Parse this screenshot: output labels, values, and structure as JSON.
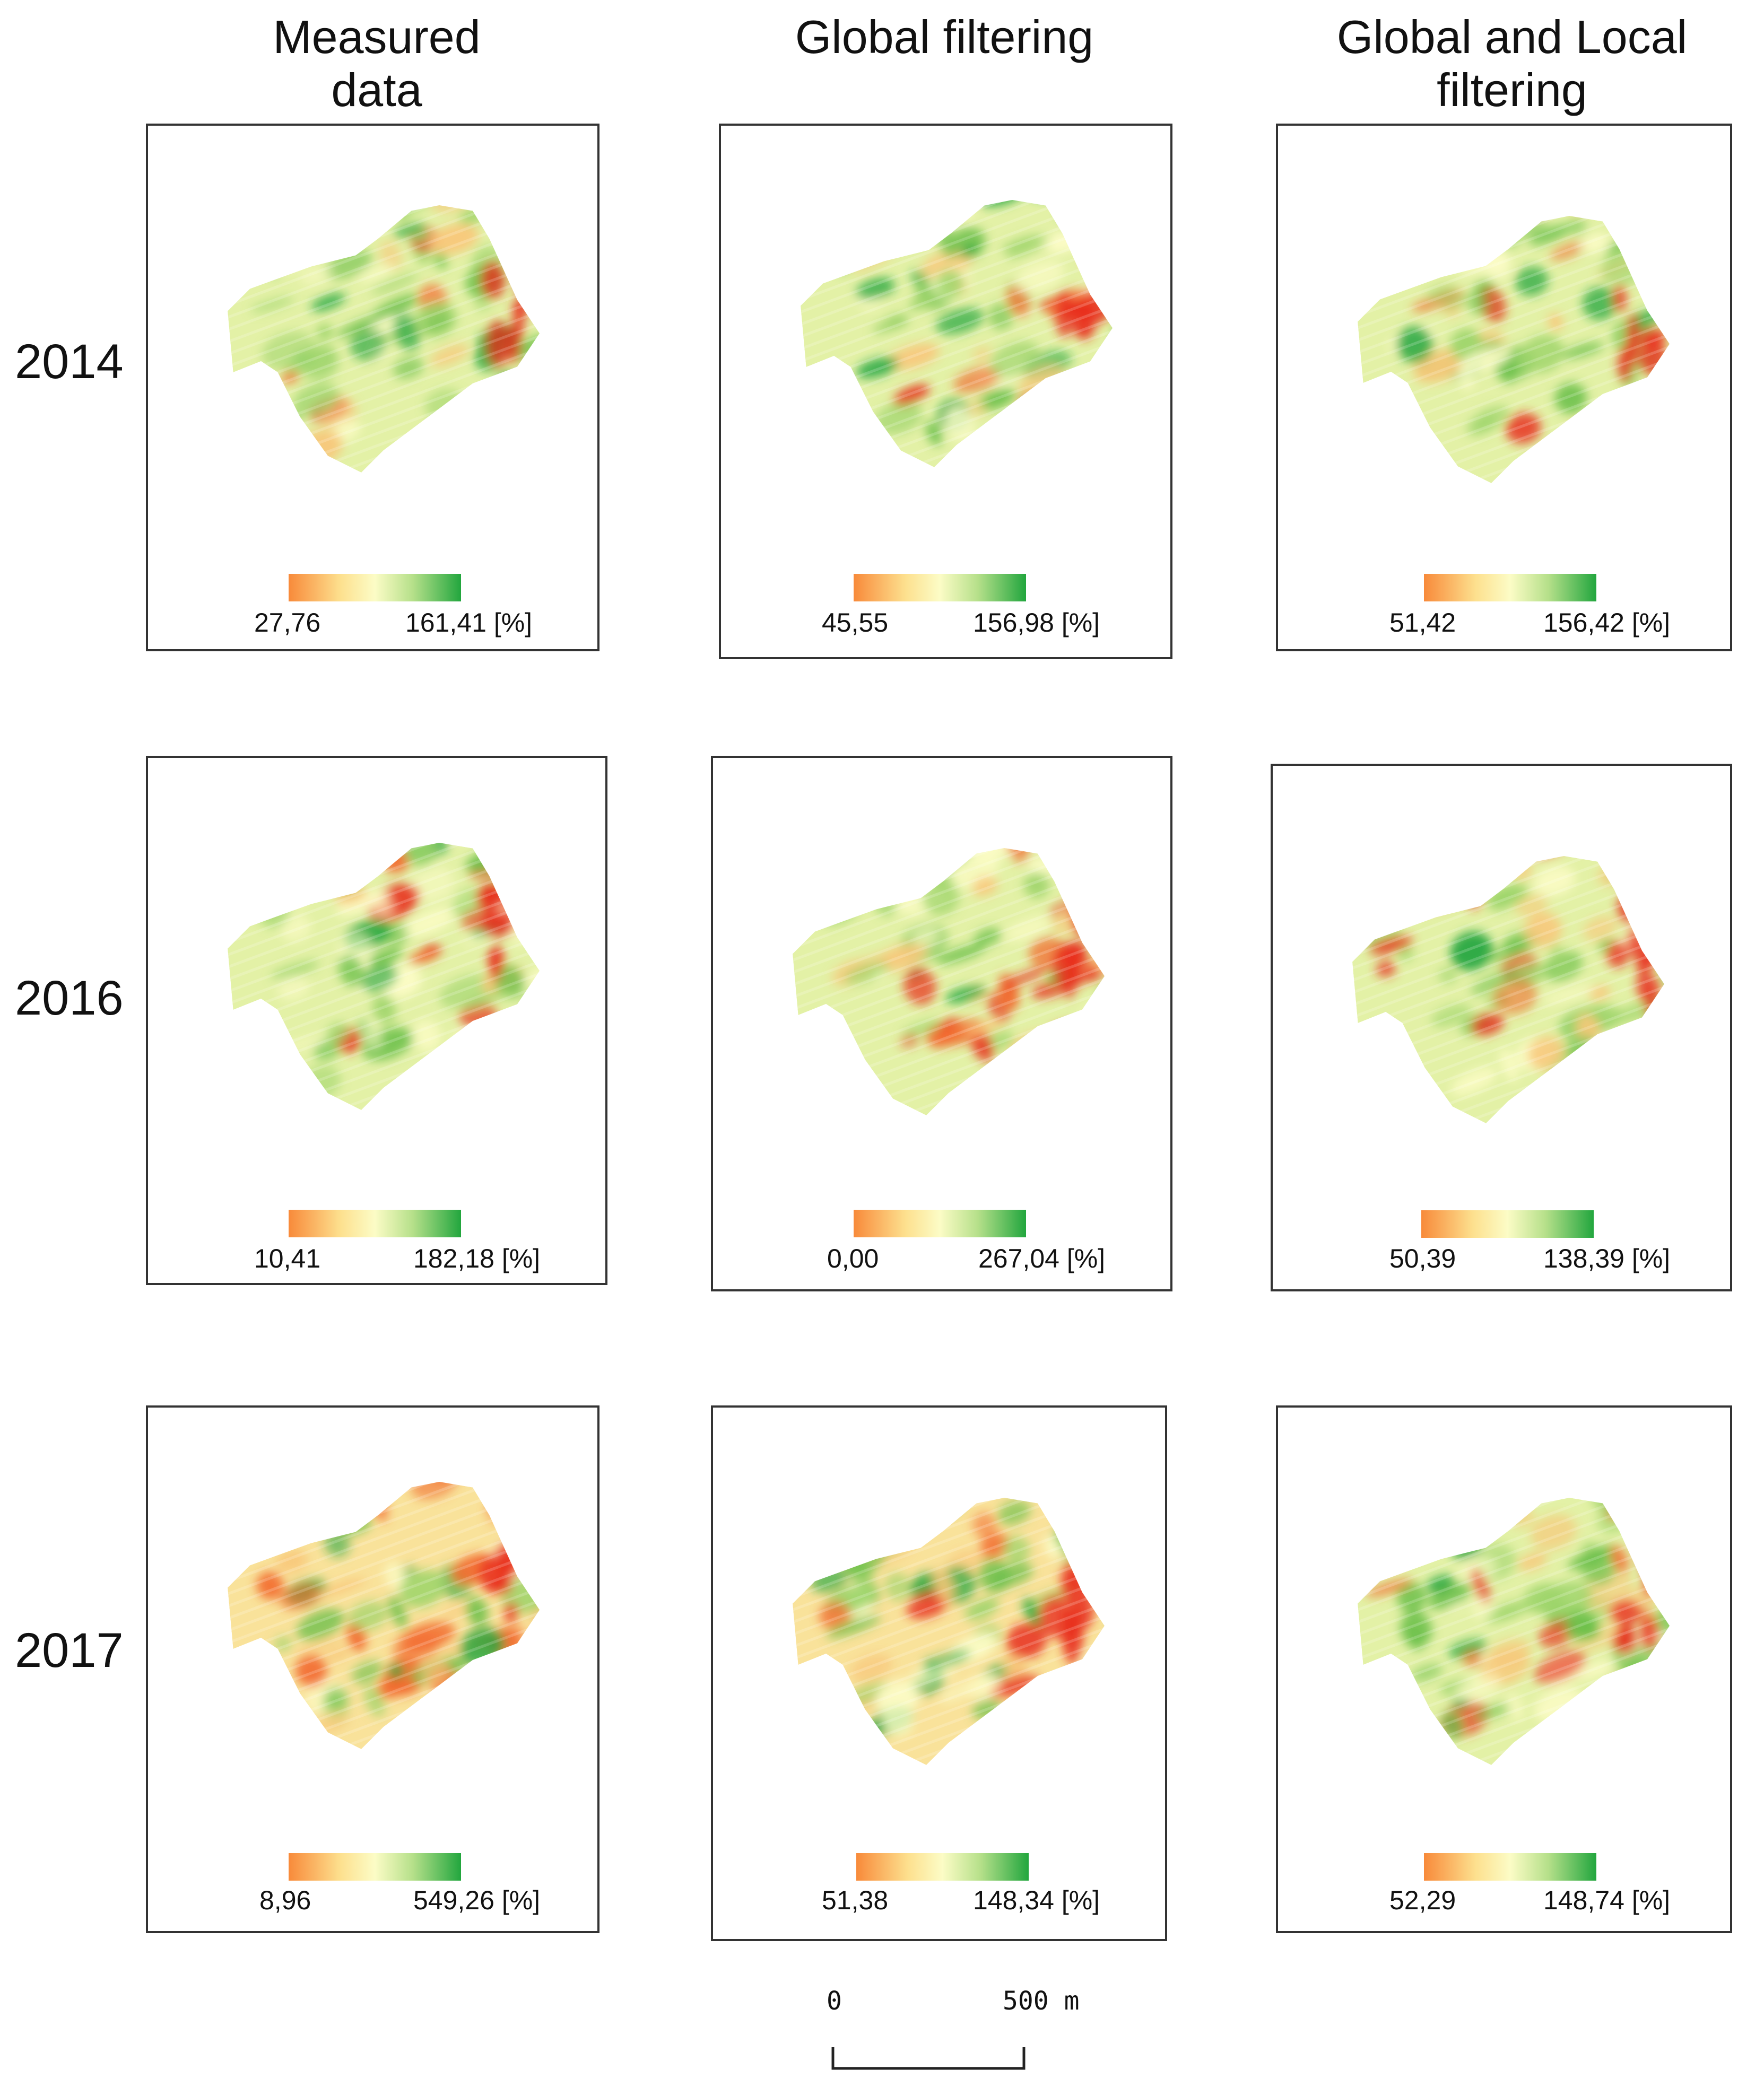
{
  "columns": [
    "Measured data",
    "Global filtering",
    "Global and Local\nfiltering"
  ],
  "years": [
    "2014",
    "2016",
    "2017"
  ],
  "panels": [
    {
      "year": "2014",
      "method": "Measured data",
      "legend": {
        "min": "27,76",
        "max": "161,41 [%]"
      }
    },
    {
      "year": "2014",
      "method": "Global filtering",
      "legend": {
        "min": "45,55",
        "max": "156,98 [%]"
      }
    },
    {
      "year": "2014",
      "method": "Global and Local filtering",
      "legend": {
        "min": "51,42",
        "max": "156,42 [%]"
      }
    },
    {
      "year": "2016",
      "method": "Measured data",
      "legend": {
        "min": "10,41",
        "max": "182,18 [%]"
      }
    },
    {
      "year": "2016",
      "method": "Global filtering",
      "legend": {
        "min": "0,00",
        "max": "267,04 [%]"
      }
    },
    {
      "year": "2016",
      "method": "Global and Local filtering",
      "legend": {
        "min": "50,39",
        "max": "138,39 [%]"
      }
    },
    {
      "year": "2017",
      "method": "Measured data",
      "legend": {
        "min": "8,96",
        "max": "549,26 [%]"
      }
    },
    {
      "year": "2017",
      "method": "Global filtering",
      "legend": {
        "min": "51,38",
        "max": "148,34 [%]"
      }
    },
    {
      "year": "2017",
      "method": "Global and Local filtering",
      "legend": {
        "min": "52,29",
        "max": "148,74 [%]"
      }
    }
  ],
  "scale_bar": {
    "start_label": "0",
    "end_label": "500 m"
  },
  "colors": {
    "low": "#f26b2f",
    "mid": "#fcfcc6",
    "high": "#22a63e",
    "red": "#e8301e",
    "frame": "#333333"
  }
}
